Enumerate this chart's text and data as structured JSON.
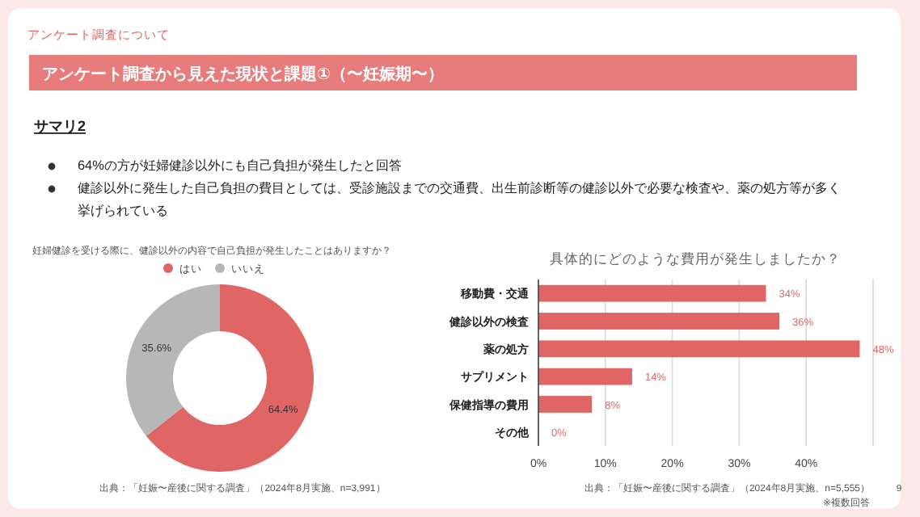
{
  "chart_data": [
    {
      "type": "other",
      "subtitle": "アンケート調査について",
      "title": "アンケート調査から見えた現状と課題①（〜妊娠期〜）",
      "annotations": [
        "サマリ2",
        "64%の方が妊婦健診以外にも自己負担が発生したと回答",
        "健診以外に発生した自己負担の費目としては、受診施設までの交通費、出生前診断等の健診以外で必要な検査や、薬の処方等が多く挙げられている",
        "9"
      ]
    },
    {
      "type": "donut",
      "title": "妊婦健診を受ける際に、健診以外の内容で自己負担が発生したことはありますか？",
      "categories": [
        "はい",
        "いいえ"
      ],
      "values": [
        64.4,
        35.6
      ],
      "colors": [
        "#e06666",
        "#b7b7b7"
      ],
      "value_labels": [
        "64.4%",
        "35.6%"
      ],
      "legend": "top",
      "annotations": [
        "出典：「妊娠〜産後に関する調査」（2024年8月実施、n=3,991）"
      ]
    },
    {
      "type": "bar",
      "orientation": "horizontal",
      "title": "具体的にどのような費用が発生しましたか？",
      "categories": [
        "移動費・交通",
        "健診以外の検査",
        "薬の処方",
        "サプリメント",
        "保健指導の費用",
        "その他"
      ],
      "series": [
        {
          "color": "#e06666",
          "values": [
            34,
            36,
            48,
            14,
            8,
            0
          ]
        }
      ],
      "value_labels": [
        "34%",
        "36%",
        "48%",
        "14%",
        "8%",
        "0%"
      ],
      "xlim": [
        0,
        50
      ],
      "xticks": [
        {
          "value": 0,
          "label": "0%"
        },
        {
          "value": 10,
          "label": "10%"
        },
        {
          "value": 20,
          "label": "20%"
        },
        {
          "value": 30,
          "label": "30%"
        },
        {
          "value": 40,
          "label": "40%"
        },
        {
          "value": 50,
          "label": null
        }
      ],
      "grid": "x",
      "annotations": [
        "出典：「妊娠〜産後に関する調査」（2024年8月実施、n=5,555）",
        "※複数回答"
      ]
    }
  ]
}
